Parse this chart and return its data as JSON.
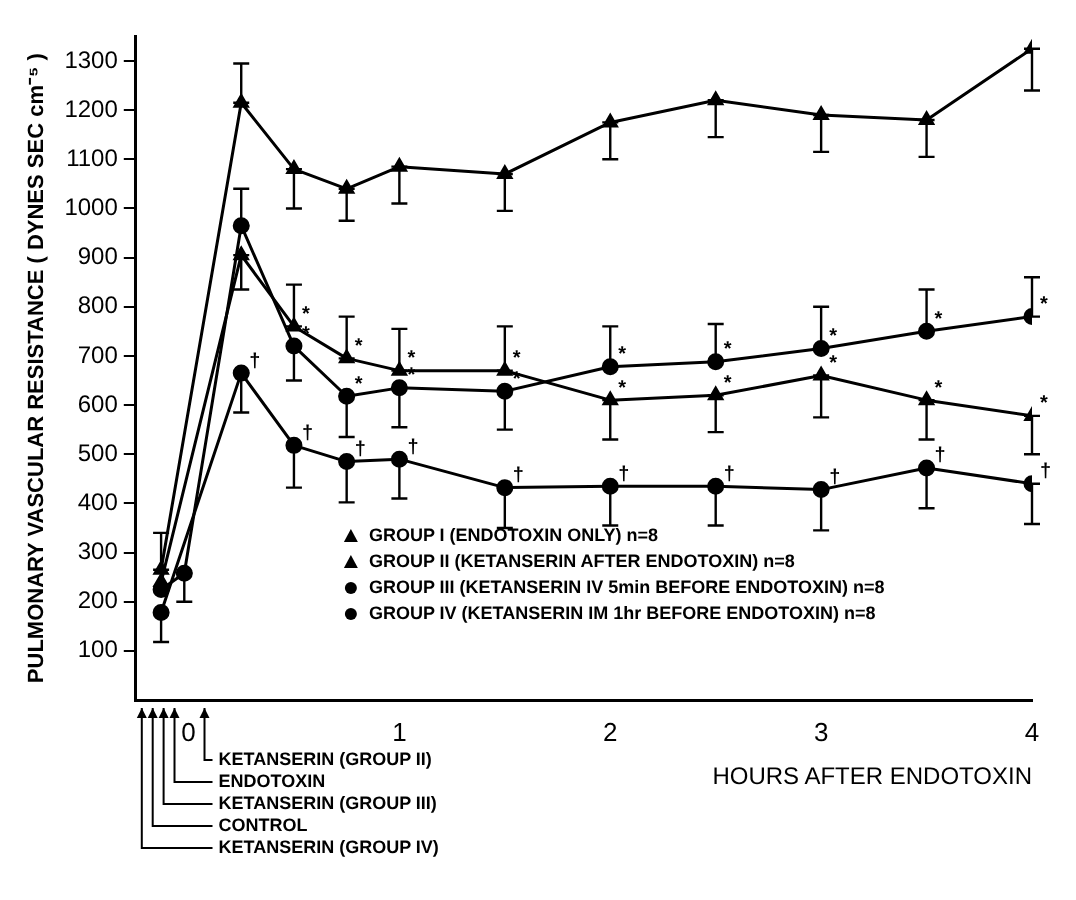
{
  "chart_data": {
    "type": "line",
    "xlabel": "HOURS AFTER ENDOTOXIN",
    "ylabel": "PULMONARY VASCULAR RESISTANCE ( DYNES SEC cm⁻⁵ )",
    "xlim": [
      -0.25,
      4
    ],
    "xticks": [
      0,
      1,
      2,
      3,
      4
    ],
    "ylim": [
      0,
      1350
    ],
    "yticks": [
      100,
      200,
      300,
      400,
      500,
      600,
      700,
      800,
      900,
      1000,
      1100,
      1200,
      1300
    ],
    "grid": false,
    "legend": "bottom",
    "line_style": "solid",
    "series": [
      {
        "name": "GROUP I (ENDOTOXIN ONLY) n=8",
        "color": "#000000",
        "marker": "triangle",
        "x": [
          -0.13,
          0.25,
          0.5,
          0.75,
          1,
          1.5,
          2,
          2.5,
          3,
          3.5,
          4
        ],
        "values": [
          265,
          1215,
          1080,
          1040,
          1085,
          1070,
          1175,
          1220,
          1190,
          1180,
          1325
        ],
        "errors": [
          [
            265,
            340
          ],
          [
            1215,
            1295
          ],
          [
            1000,
            1080
          ],
          [
            975,
            1040
          ],
          [
            1010,
            1085
          ],
          [
            995,
            1070
          ],
          [
            1100,
            1175
          ],
          [
            1145,
            1220
          ],
          [
            1115,
            1190
          ],
          [
            1105,
            1180
          ],
          [
            1240,
            1325
          ]
        ]
      },
      {
        "name": "GROUP II (KETANSERIN AFTER ENDOTOXIN) n=8",
        "color": "#000000",
        "marker": "triangle",
        "x": [
          -0.13,
          0.25,
          0.5,
          0.75,
          1,
          1.5,
          2,
          2.5,
          3,
          3.5,
          4
        ],
        "values": [
          240,
          905,
          760,
          695,
          670,
          670,
          610,
          620,
          660,
          610,
          578
        ],
        "errors": [
          null,
          [
            835,
            905
          ],
          [
            760,
            845
          ],
          [
            695,
            780
          ],
          [
            670,
            755
          ],
          [
            670,
            760
          ],
          [
            530,
            610
          ],
          [
            545,
            620
          ],
          [
            575,
            660
          ],
          [
            530,
            610
          ],
          [
            500,
            578
          ]
        ],
        "value_labels": [
          null,
          null,
          "*",
          "*",
          "*",
          "*",
          "*",
          "*",
          "*",
          "*",
          "*"
        ]
      },
      {
        "name": "GROUP III (KETANSERIN IV 5min BEFORE ENDOTOXIN) n=8",
        "color": "#000000",
        "marker": "circle",
        "x": [
          -0.13,
          -0.02,
          0.25,
          0.5,
          0.75,
          1,
          1.5,
          2,
          2.5,
          3,
          3.5,
          4
        ],
        "values": [
          225,
          258,
          965,
          720,
          618,
          635,
          628,
          678,
          688,
          715,
          750,
          780
        ],
        "errors": [
          null,
          [
            200,
            258
          ],
          [
            965,
            1040
          ],
          [
            650,
            720
          ],
          [
            535,
            618
          ],
          [
            555,
            635
          ],
          [
            550,
            628
          ],
          [
            678,
            760
          ],
          [
            688,
            765
          ],
          [
            715,
            800
          ],
          [
            750,
            835
          ],
          [
            780,
            860
          ]
        ],
        "value_labels": [
          null,
          null,
          null,
          "*",
          "*",
          "*",
          "*",
          "*",
          "*",
          "*",
          "*",
          "*"
        ]
      },
      {
        "name": "GROUP IV (KETANSERIN IM 1hr BEFORE ENDOTOXIN) n=8",
        "color": "#000000",
        "marker": "circle",
        "x": [
          -0.13,
          0.25,
          0.5,
          0.75,
          1,
          1.5,
          2,
          2.5,
          3,
          3.5,
          4
        ],
        "values": [
          178,
          665,
          518,
          485,
          490,
          432,
          435,
          435,
          428,
          472,
          440
        ],
        "errors": [
          [
            118,
            178
          ],
          [
            585,
            665
          ],
          [
            432,
            518
          ],
          [
            402,
            485
          ],
          [
            410,
            490
          ],
          [
            350,
            432
          ],
          [
            355,
            435
          ],
          [
            355,
            435
          ],
          [
            345,
            428
          ],
          [
            390,
            472
          ],
          [
            358,
            440
          ]
        ],
        "value_labels": [
          null,
          "†",
          "†",
          "†",
          "†",
          "†",
          "†",
          "†",
          "†",
          "†",
          "†"
        ]
      }
    ],
    "annotations": [
      "KETANSERIN (GROUP II)",
      "ENDOTOXIN",
      "KETANSERIN (GROUP III)",
      "CONTROL",
      "KETANSERIN (GROUP IV)"
    ]
  }
}
